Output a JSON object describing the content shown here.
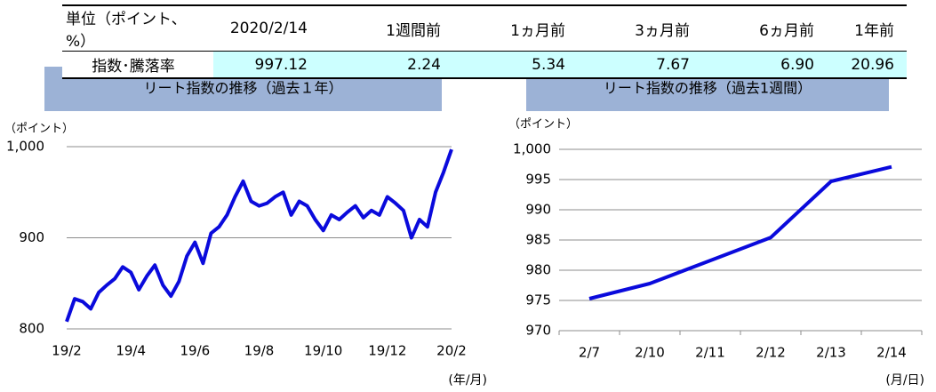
{
  "table": {
    "header": [
      "単位（ポイント、%）",
      "2020/2/14",
      "1週間前",
      "1ヵ月前",
      "3ヵ月前",
      "6ヵ月前",
      "1年前"
    ],
    "rows": [
      [
        "指数･騰落率",
        "997.12",
        "2.24",
        "5.34",
        "7.67",
        "6.90",
        "20.96"
      ]
    ]
  },
  "chart_data": [
    {
      "type": "line",
      "title": "リート指数の推移（過去１年）",
      "y_label": "（ポイント）",
      "x_label": "(年/月)",
      "categories": [
        "19/2",
        null,
        null,
        null,
        null,
        null,
        null,
        null,
        "19/4",
        null,
        null,
        null,
        null,
        null,
        null,
        null,
        "19/6",
        null,
        null,
        null,
        null,
        null,
        null,
        null,
        "19/8",
        null,
        null,
        null,
        null,
        null,
        null,
        null,
        "19/10",
        null,
        null,
        null,
        null,
        null,
        null,
        null,
        "19/12",
        null,
        null,
        null,
        null,
        null,
        null,
        null,
        "20/2"
      ],
      "series": [
        {
          "name": "リート指数",
          "color": "#0a0adc",
          "values": [
            808,
            833,
            830,
            822,
            840,
            848,
            855,
            868,
            862,
            843,
            858,
            870,
            848,
            836,
            852,
            880,
            895,
            872,
            905,
            912,
            925,
            945,
            962,
            940,
            935,
            938,
            945,
            950,
            925,
            940,
            935,
            920,
            908,
            925,
            920,
            928,
            935,
            922,
            930,
            925,
            945,
            938,
            930,
            900,
            920,
            912,
            950,
            972,
            997
          ]
        }
      ],
      "ylim": [
        800,
        1000
      ],
      "yticks": [
        800,
        900,
        {
          "value": 1000,
          "label": "1,000"
        }
      ],
      "grid": true
    },
    {
      "type": "line",
      "title": "リート指数の推移（過去1週間）",
      "y_label": "（ポイント）",
      "x_label": "(月/日)",
      "categories": [
        "2/7",
        "2/10",
        "2/11",
        "2/12",
        "2/13",
        "2/14"
      ],
      "series": [
        {
          "name": "リート指数",
          "color": "#0a0adc",
          "values": [
            975.3,
            977.8,
            981.6,
            985.4,
            994.7,
            997.1
          ]
        }
      ],
      "ylim": [
        970,
        1000
      ],
      "yticks": [
        970,
        975,
        980,
        985,
        990,
        995,
        {
          "value": 1000,
          "label": "1,000"
        }
      ],
      "grid": true
    }
  ]
}
